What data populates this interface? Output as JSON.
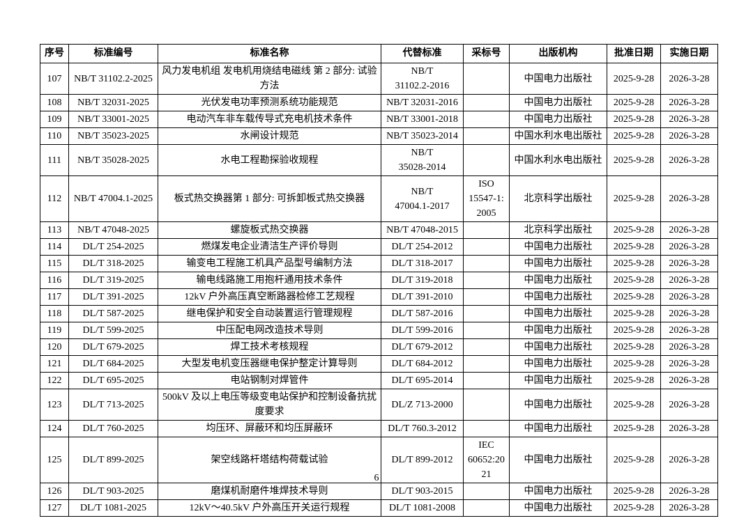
{
  "page": {
    "number": "6"
  },
  "table": {
    "headers": {
      "no": "序号",
      "code": "标准编号",
      "name": "标准名称",
      "replaces": "代替标准",
      "adopted": "采标号",
      "publisher": "出版机构",
      "approved": "批准日期",
      "effective": "实施日期"
    },
    "rows": [
      {
        "no": "107",
        "code": "NB/T 31102.2-2025",
        "name": "风力发电机组 发电机用烧结电磁线 第 2 部分: 试验方法",
        "replaces": "NB/T\n31102.2-2016",
        "adopted": "",
        "publisher": "中国电力出版社",
        "approved": "2025-9-28",
        "effective": "2026-3-28"
      },
      {
        "no": "108",
        "code": "NB/T 32031-2025",
        "name": "光伏发电功率预测系统功能规范",
        "replaces": "NB/T 32031-2016",
        "adopted": "",
        "publisher": "中国电力出版社",
        "approved": "2025-9-28",
        "effective": "2026-3-28"
      },
      {
        "no": "109",
        "code": "NB/T 33001-2025",
        "name": "电动汽车非车载传导式充电机技术条件",
        "replaces": "NB/T 33001-2018",
        "adopted": "",
        "publisher": "中国电力出版社",
        "approved": "2025-9-28",
        "effective": "2026-3-28"
      },
      {
        "no": "110",
        "code": "NB/T 35023-2025",
        "name": "水闸设计规范",
        "replaces": "NB/T 35023-2014",
        "adopted": "",
        "publisher": "中国水利水电出版社",
        "approved": "2025-9-28",
        "effective": "2026-3-28"
      },
      {
        "no": "111",
        "code": "NB/T 35028-2025",
        "name": "水电工程勘探验收规程",
        "replaces": "NB/T\n35028-2014",
        "adopted": "",
        "publisher": "中国水利水电出版社",
        "approved": "2025-9-28",
        "effective": "2026-3-28"
      },
      {
        "no": "112",
        "code": "NB/T 47004.1-2025",
        "name": "板式热交换器第 1 部分: 可拆卸板式热交换器",
        "replaces": "NB/T\n47004.1-2017",
        "adopted": "ISO\n15547-1:\n2005",
        "publisher": "北京科学出版社",
        "approved": "2025-9-28",
        "effective": "2026-3-28"
      },
      {
        "no": "113",
        "code": "NB/T 47048-2025",
        "name": "螺旋板式热交换器",
        "replaces": "NB/T 47048-2015",
        "adopted": "",
        "publisher": "北京科学出版社",
        "approved": "2025-9-28",
        "effective": "2026-3-28"
      },
      {
        "no": "114",
        "code": "DL/T 254-2025",
        "name": "燃煤发电企业清洁生产评价导则",
        "replaces": "DL/T 254-2012",
        "adopted": "",
        "publisher": "中国电力出版社",
        "approved": "2025-9-28",
        "effective": "2026-3-28"
      },
      {
        "no": "115",
        "code": "DL/T 318-2025",
        "name": "输变电工程施工机具产品型号编制方法",
        "replaces": "DL/T 318-2017",
        "adopted": "",
        "publisher": "中国电力出版社",
        "approved": "2025-9-28",
        "effective": "2026-3-28"
      },
      {
        "no": "116",
        "code": "DL/T 319-2025",
        "name": "输电线路施工用抱杆通用技术条件",
        "replaces": "DL/T 319-2018",
        "adopted": "",
        "publisher": "中国电力出版社",
        "approved": "2025-9-28",
        "effective": "2026-3-28"
      },
      {
        "no": "117",
        "code": "DL/T 391-2025",
        "name": "12kV 户外高压真空断路器检修工艺规程",
        "replaces": "DL/T 391-2010",
        "adopted": "",
        "publisher": "中国电力出版社",
        "approved": "2025-9-28",
        "effective": "2026-3-28"
      },
      {
        "no": "118",
        "code": "DL/T 587-2025",
        "name": "继电保护和安全自动装置运行管理规程",
        "replaces": "DL/T 587-2016",
        "adopted": "",
        "publisher": "中国电力出版社",
        "approved": "2025-9-28",
        "effective": "2026-3-28"
      },
      {
        "no": "119",
        "code": "DL/T 599-2025",
        "name": "中压配电网改造技术导则",
        "replaces": "DL/T 599-2016",
        "adopted": "",
        "publisher": "中国电力出版社",
        "approved": "2025-9-28",
        "effective": "2026-3-28"
      },
      {
        "no": "120",
        "code": "DL/T 679-2025",
        "name": "焊工技术考核规程",
        "replaces": "DL/T 679-2012",
        "adopted": "",
        "publisher": "中国电力出版社",
        "approved": "2025-9-28",
        "effective": "2026-3-28"
      },
      {
        "no": "121",
        "code": "DL/T 684-2025",
        "name": "大型发电机变压器继电保护整定计算导则",
        "replaces": "DL/T 684-2012",
        "adopted": "",
        "publisher": "中国电力出版社",
        "approved": "2025-9-28",
        "effective": "2026-3-28"
      },
      {
        "no": "122",
        "code": "DL/T 695-2025",
        "name": "电站钢制对焊管件",
        "replaces": "DL/T 695-2014",
        "adopted": "",
        "publisher": "中国电力出版社",
        "approved": "2025-9-28",
        "effective": "2026-3-28"
      },
      {
        "no": "123",
        "code": "DL/T 713-2025",
        "name": "500kV 及以上电压等级变电站保护和控制设备抗扰度要求",
        "replaces": "DL/Z 713-2000",
        "adopted": "",
        "publisher": "中国电力出版社",
        "approved": "2025-9-28",
        "effective": "2026-3-28"
      },
      {
        "no": "124",
        "code": "DL/T 760-2025",
        "name": "均压环、屏蔽环和均压屏蔽环",
        "replaces": "DL/T 760.3-2012",
        "adopted": "",
        "publisher": "中国电力出版社",
        "approved": "2025-9-28",
        "effective": "2026-3-28"
      },
      {
        "no": "125",
        "code": "DL/T 899-2025",
        "name": "架空线路杆塔结构荷载试验",
        "replaces": "DL/T 899-2012",
        "adopted": "IEC\n60652:20\n21",
        "publisher": "中国电力出版社",
        "approved": "2025-9-28",
        "effective": "2026-3-28"
      },
      {
        "no": "126",
        "code": "DL/T 903-2025",
        "name": "磨煤机耐磨件堆焊技术导则",
        "replaces": "DL/T 903-2015",
        "adopted": "",
        "publisher": "中国电力出版社",
        "approved": "2025-9-28",
        "effective": "2026-3-28"
      },
      {
        "no": "127",
        "code": "DL/T 1081-2025",
        "name": "12kV～40.5kV 户外高压开关运行规程",
        "replaces": "DL/T 1081-2008",
        "adopted": "",
        "publisher": "中国电力出版社",
        "approved": "2025-9-28",
        "effective": "2026-3-28"
      }
    ]
  }
}
